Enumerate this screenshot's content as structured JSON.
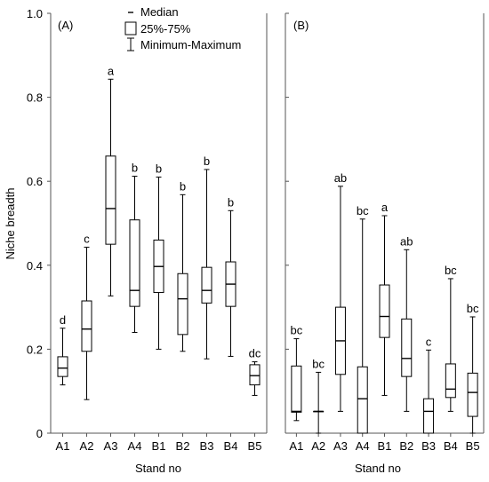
{
  "chart_data": {
    "type": "boxplot",
    "ylabel": "Niche breadth",
    "xlabel": "Stand no",
    "ylim": [
      0,
      1.0
    ],
    "yticks": [
      "0",
      "0.2",
      "0.4",
      "0.6",
      "0.8",
      "1.0"
    ],
    "legend": {
      "placement": "top",
      "entries": [
        {
          "symbol": "median",
          "label": "Median"
        },
        {
          "symbol": "box",
          "label": "25%-75%"
        },
        {
          "symbol": "whisker",
          "label": "Minimum-Maximum"
        }
      ]
    },
    "panels": [
      {
        "label": "(A)",
        "categories": [
          "A1",
          "A2",
          "A3",
          "A4",
          "B1",
          "B2",
          "B3",
          "B4",
          "B5"
        ],
        "boxes": [
          {
            "min": 0.115,
            "q1": 0.135,
            "median": 0.155,
            "q3": 0.182,
            "max": 0.25,
            "group": "d"
          },
          {
            "min": 0.08,
            "q1": 0.195,
            "median": 0.248,
            "q3": 0.315,
            "max": 0.443,
            "group": "c"
          },
          {
            "min": 0.327,
            "q1": 0.45,
            "median": 0.535,
            "q3": 0.66,
            "max": 0.843,
            "group": "a"
          },
          {
            "min": 0.24,
            "q1": 0.302,
            "median": 0.34,
            "q3": 0.508,
            "max": 0.612,
            "group": "b"
          },
          {
            "min": 0.2,
            "q1": 0.335,
            "median": 0.397,
            "q3": 0.46,
            "max": 0.61,
            "group": "b"
          },
          {
            "min": 0.195,
            "q1": 0.235,
            "median": 0.32,
            "q3": 0.38,
            "max": 0.568,
            "group": "b"
          },
          {
            "min": 0.177,
            "q1": 0.31,
            "median": 0.34,
            "q3": 0.395,
            "max": 0.628,
            "group": "b"
          },
          {
            "min": 0.183,
            "q1": 0.302,
            "median": 0.355,
            "q3": 0.408,
            "max": 0.53,
            "group": "b"
          },
          {
            "min": 0.09,
            "q1": 0.115,
            "median": 0.137,
            "q3": 0.163,
            "max": 0.17,
            "group": "dc"
          }
        ]
      },
      {
        "label": "(B)",
        "categories": [
          "A1",
          "A2",
          "A3",
          "A4",
          "B1",
          "B2",
          "B3",
          "B4",
          "B5"
        ],
        "boxes": [
          {
            "min": 0.03,
            "q1": 0.05,
            "median": 0.052,
            "q3": 0.16,
            "max": 0.225,
            "group": "bc"
          },
          {
            "min": 0.0,
            "q1": 0.052,
            "median": 0.052,
            "q3": 0.052,
            "max": 0.145,
            "group": "bc"
          },
          {
            "min": 0.052,
            "q1": 0.14,
            "median": 0.22,
            "q3": 0.3,
            "max": 0.588,
            "group": "ab"
          },
          {
            "min": 0.0,
            "q1": 0.0,
            "median": 0.082,
            "q3": 0.158,
            "max": 0.51,
            "group": "bc"
          },
          {
            "min": 0.09,
            "q1": 0.228,
            "median": 0.278,
            "q3": 0.353,
            "max": 0.518,
            "group": "a"
          },
          {
            "min": 0.052,
            "q1": 0.135,
            "median": 0.178,
            "q3": 0.272,
            "max": 0.437,
            "group": "ab"
          },
          {
            "min": 0.0,
            "q1": 0.0,
            "median": 0.052,
            "q3": 0.082,
            "max": 0.198,
            "group": "c"
          },
          {
            "min": 0.052,
            "q1": 0.085,
            "median": 0.105,
            "q3": 0.165,
            "max": 0.368,
            "group": "bc"
          },
          {
            "min": 0.0,
            "q1": 0.04,
            "median": 0.097,
            "q3": 0.143,
            "max": 0.277,
            "group": "bc"
          }
        ]
      }
    ]
  }
}
